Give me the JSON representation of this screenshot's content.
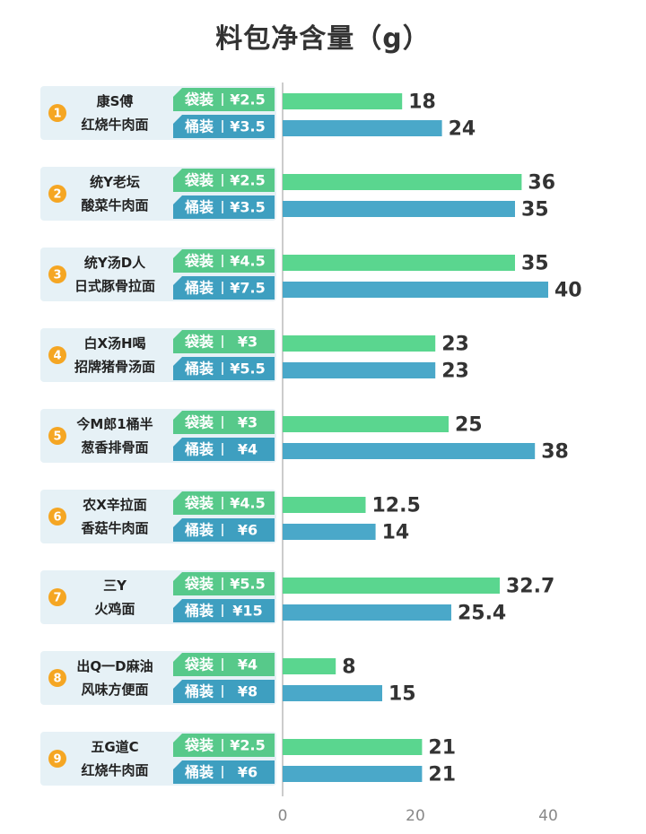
{
  "title": "料包净含量（g）",
  "colors": {
    "bag": "#5ad68f",
    "bag_tag": "#57c98a",
    "bucket": "#4aa8c9",
    "bucket_tag": "#3e9fc0",
    "badge": "#f5a623",
    "panel": "#e6f1f6",
    "axis": "#bbbbbb"
  },
  "chart_data": {
    "type": "bar",
    "orientation": "horizontal",
    "title": "料包净含量（g）",
    "xlim": [
      0,
      50
    ],
    "xticks": [
      0,
      20,
      40
    ],
    "grid": false,
    "legend": "none",
    "categories": [
      {
        "num": "1",
        "name": [
          "康S傅",
          "红烧牛肉面"
        ],
        "bag_tag": "袋装",
        "bag_price": "¥2.5",
        "bucket_tag": "桶装",
        "bucket_price": "¥3.5",
        "bag": 18,
        "bucket": 24
      },
      {
        "num": "2",
        "name": [
          "统Y老坛",
          "酸菜牛肉面"
        ],
        "bag_tag": "袋装",
        "bag_price": "¥2.5",
        "bucket_tag": "桶装",
        "bucket_price": "¥3.5",
        "bag": 36,
        "bucket": 35
      },
      {
        "num": "3",
        "name": [
          "统Y汤D人",
          "日式豚骨拉面"
        ],
        "bag_tag": "袋装",
        "bag_price": "¥4.5",
        "bucket_tag": "桶装",
        "bucket_price": "¥7.5",
        "bag": 35,
        "bucket": 40
      },
      {
        "num": "4",
        "name": [
          "白X汤H喝",
          "招牌猪骨汤面"
        ],
        "bag_tag": "袋装",
        "bag_price": "¥3",
        "bucket_tag": "桶装",
        "bucket_price": "¥5.5",
        "bag": 23,
        "bucket": 23
      },
      {
        "num": "5",
        "name": [
          "今M郎1桶半",
          "葱香排骨面"
        ],
        "bag_tag": "袋装",
        "bag_price": "¥3",
        "bucket_tag": "桶装",
        "bucket_price": "¥4",
        "bag": 25,
        "bucket": 38
      },
      {
        "num": "6",
        "name": [
          "农X辛拉面",
          "香菇牛肉面"
        ],
        "bag_tag": "袋装",
        "bag_price": "¥4.5",
        "bucket_tag": "桶装",
        "bucket_price": "¥6",
        "bag": 12.5,
        "bucket": 14
      },
      {
        "num": "7",
        "name": [
          "三Y",
          "火鸡面"
        ],
        "bag_tag": "袋装",
        "bag_price": "¥5.5",
        "bucket_tag": "桶装",
        "bucket_price": "¥15",
        "bag": 32.7,
        "bucket": 25.4
      },
      {
        "num": "8",
        "name": [
          "出Q一D麻油",
          "风味方便面"
        ],
        "bag_tag": "袋装",
        "bag_price": "¥4",
        "bucket_tag": "桶装",
        "bucket_price": "¥8",
        "bag": 8,
        "bucket": 15
      },
      {
        "num": "9",
        "name": [
          "五G道C",
          "红烧牛肉面"
        ],
        "bag_tag": "袋装",
        "bag_price": "¥2.5",
        "bucket_tag": "桶装",
        "bucket_price": "¥6",
        "bag": 21,
        "bucket": 21
      }
    ]
  }
}
